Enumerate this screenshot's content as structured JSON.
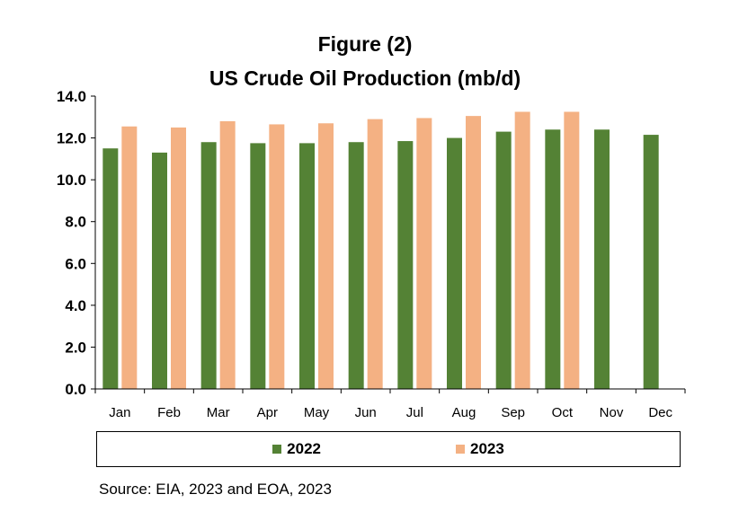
{
  "title_line1": "Figure (2)",
  "title_line2": "US Crude Oil Production  (mb/d)",
  "source": "Source: EIA, 2023 and EOA, 2023",
  "colors": {
    "s2022": "#548235",
    "s2023": "#f4b183"
  },
  "chart_data": {
    "type": "bar",
    "categories": [
      "Jan",
      "Feb",
      "Mar",
      "Apr",
      "May",
      "Jun",
      "Jul",
      "Aug",
      "Sep",
      "Oct",
      "Nov",
      "Dec"
    ],
    "series": [
      {
        "name": "2022",
        "values": [
          11.5,
          11.3,
          11.8,
          11.75,
          11.75,
          11.8,
          11.85,
          12.0,
          12.3,
          12.4,
          12.4,
          12.15
        ]
      },
      {
        "name": "2023",
        "values": [
          12.55,
          12.5,
          12.8,
          12.65,
          12.7,
          12.9,
          12.95,
          13.05,
          13.25,
          13.25,
          null,
          null
        ]
      }
    ],
    "ylim": [
      0,
      14
    ],
    "yticks": [
      "0.0",
      "2.0",
      "4.0",
      "6.0",
      "8.0",
      "10.0",
      "12.0",
      "14.0"
    ],
    "legend_position": "bottom",
    "grid": false
  }
}
